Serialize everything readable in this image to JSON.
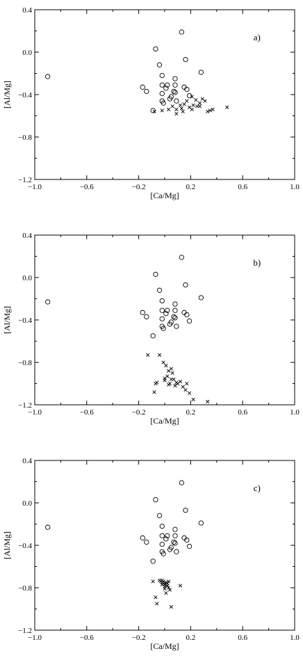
{
  "chart_data": [
    {
      "type": "scatter",
      "panel_label": "a)",
      "xlabel": "[Ca/Mg]",
      "ylabel": "[Al/Mg]",
      "xlim": [
        -1.0,
        1.0
      ],
      "ylim": [
        -1.2,
        0.4
      ],
      "x_ticks": [
        "-1.0",
        "-0.6",
        "-0.2",
        "0.2",
        "0.6",
        "1.0"
      ],
      "y_ticks": [
        "0.4",
        "0.0",
        "-0.4",
        "-0.8",
        "-1.2"
      ],
      "grid": false,
      "series": [
        {
          "marker": "circle",
          "points": [
            [
              -0.9,
              -0.23
            ],
            [
              -0.17,
              -0.33
            ],
            [
              -0.14,
              -0.37
            ],
            [
              -0.09,
              -0.55
            ],
            [
              -0.07,
              0.03
            ],
            [
              -0.04,
              -0.12
            ],
            [
              -0.02,
              -0.22
            ],
            [
              -0.02,
              -0.31
            ],
            [
              -0.02,
              -0.39
            ],
            [
              -0.02,
              -0.46
            ],
            [
              -0.01,
              -0.48
            ],
            [
              0.01,
              -0.34
            ],
            [
              0.02,
              -0.31
            ],
            [
              0.04,
              -0.44
            ],
            [
              0.05,
              -0.42
            ],
            [
              0.07,
              -0.37
            ],
            [
              0.08,
              -0.38
            ],
            [
              0.08,
              -0.25
            ],
            [
              0.08,
              -0.31
            ],
            [
              0.09,
              -0.46
            ],
            [
              0.13,
              0.19
            ],
            [
              0.15,
              -0.33
            ],
            [
              0.16,
              -0.07
            ],
            [
              0.17,
              -0.35
            ],
            [
              0.19,
              -0.41
            ],
            [
              0.28,
              -0.19
            ]
          ]
        },
        {
          "marker": "cross",
          "points": [
            [
              -0.08,
              -0.56
            ],
            [
              -0.02,
              -0.55
            ],
            [
              0.03,
              -0.54
            ],
            [
              0.06,
              -0.51
            ],
            [
              0.09,
              -0.58
            ],
            [
              0.09,
              -0.54
            ],
            [
              0.12,
              -0.5
            ],
            [
              0.14,
              -0.56
            ],
            [
              0.15,
              -0.49
            ],
            [
              0.17,
              -0.46
            ],
            [
              0.19,
              -0.52
            ],
            [
              0.21,
              -0.54
            ],
            [
              0.22,
              -0.5
            ],
            [
              0.24,
              -0.45
            ],
            [
              0.25,
              -0.51
            ],
            [
              0.27,
              -0.48
            ],
            [
              0.29,
              -0.44
            ],
            [
              0.31,
              -0.46
            ],
            [
              0.33,
              -0.56
            ],
            [
              0.35,
              -0.55
            ],
            [
              0.37,
              -0.54
            ],
            [
              0.48,
              -0.52
            ],
            [
              0.21,
              -0.42
            ],
            [
              0.27,
              -0.51
            ],
            [
              0.13,
              -0.53
            ]
          ]
        }
      ]
    },
    {
      "type": "scatter",
      "panel_label": "b)",
      "xlabel": "[Ca/Mg]",
      "ylabel": "[Al/Mg]",
      "xlim": [
        -1.0,
        1.0
      ],
      "ylim": [
        -1.2,
        0.4
      ],
      "x_ticks": [
        "-1.0",
        "-0.6",
        "-0.2",
        "0.2",
        "0.6",
        "1.0"
      ],
      "y_ticks": [
        "0.4",
        "0.0",
        "-0.4",
        "-0.8",
        "-1.2"
      ],
      "grid": false,
      "series": [
        {
          "marker": "circle",
          "points": [
            [
              -0.9,
              -0.23
            ],
            [
              -0.17,
              -0.33
            ],
            [
              -0.14,
              -0.37
            ],
            [
              -0.09,
              -0.55
            ],
            [
              -0.07,
              0.03
            ],
            [
              -0.04,
              -0.12
            ],
            [
              -0.02,
              -0.22
            ],
            [
              -0.02,
              -0.31
            ],
            [
              -0.02,
              -0.39
            ],
            [
              -0.02,
              -0.46
            ],
            [
              -0.01,
              -0.48
            ],
            [
              0.01,
              -0.34
            ],
            [
              0.02,
              -0.31
            ],
            [
              0.04,
              -0.44
            ],
            [
              0.05,
              -0.42
            ],
            [
              0.07,
              -0.37
            ],
            [
              0.08,
              -0.38
            ],
            [
              0.08,
              -0.25
            ],
            [
              0.08,
              -0.31
            ],
            [
              0.09,
              -0.46
            ],
            [
              0.13,
              0.19
            ],
            [
              0.15,
              -0.33
            ],
            [
              0.16,
              -0.07
            ],
            [
              0.17,
              -0.35
            ],
            [
              0.19,
              -0.41
            ],
            [
              0.28,
              -0.19
            ]
          ]
        },
        {
          "marker": "cross",
          "points": [
            [
              -0.13,
              -0.73
            ],
            [
              -0.08,
              -1.08
            ],
            [
              -0.07,
              -1.0
            ],
            [
              -0.06,
              -0.99
            ],
            [
              -0.04,
              -0.73
            ],
            [
              -0.01,
              -0.8
            ],
            [
              0.0,
              -0.97
            ],
            [
              0.01,
              -0.83
            ],
            [
              0.02,
              -0.93
            ],
            [
              0.03,
              -1.01
            ],
            [
              0.03,
              -0.88
            ],
            [
              0.04,
              -1.0
            ],
            [
              0.05,
              -0.86
            ],
            [
              0.06,
              -0.9
            ],
            [
              0.07,
              -0.96
            ],
            [
              0.08,
              -1.02
            ],
            [
              0.09,
              -0.99
            ],
            [
              0.1,
              -1.0
            ],
            [
              0.12,
              -0.98
            ],
            [
              0.14,
              -1.03
            ],
            [
              0.16,
              -1.06
            ],
            [
              0.17,
              -1.0
            ],
            [
              0.19,
              -1.09
            ],
            [
              0.22,
              -1.15
            ],
            [
              0.33,
              -1.17
            ],
            [
              0.0,
              -0.95
            ],
            [
              0.05,
              -0.96
            ]
          ]
        }
      ]
    },
    {
      "type": "scatter",
      "panel_label": "c)",
      "xlabel": "[Ca/Mg]",
      "ylabel": "[Al/Mg]",
      "xlim": [
        -1.0,
        1.0
      ],
      "ylim": [
        -1.2,
        0.4
      ],
      "x_ticks": [
        "-1.0",
        "-0.6",
        "-0.2",
        "0.2",
        "0.6",
        "1.0"
      ],
      "y_ticks": [
        "0.4",
        "0.0",
        "-0.4",
        "-0.8",
        "-1.2"
      ],
      "grid": false,
      "series": [
        {
          "marker": "circle",
          "points": [
            [
              -0.9,
              -0.23
            ],
            [
              -0.17,
              -0.33
            ],
            [
              -0.14,
              -0.37
            ],
            [
              -0.09,
              -0.55
            ],
            [
              -0.07,
              0.03
            ],
            [
              -0.04,
              -0.12
            ],
            [
              -0.02,
              -0.22
            ],
            [
              -0.02,
              -0.31
            ],
            [
              -0.02,
              -0.39
            ],
            [
              -0.02,
              -0.46
            ],
            [
              -0.01,
              -0.48
            ],
            [
              0.01,
              -0.34
            ],
            [
              0.02,
              -0.31
            ],
            [
              0.04,
              -0.44
            ],
            [
              0.05,
              -0.42
            ],
            [
              0.07,
              -0.37
            ],
            [
              0.08,
              -0.38
            ],
            [
              0.08,
              -0.25
            ],
            [
              0.08,
              -0.31
            ],
            [
              0.09,
              -0.46
            ],
            [
              0.13,
              0.19
            ],
            [
              0.15,
              -0.33
            ],
            [
              0.16,
              -0.07
            ],
            [
              0.17,
              -0.35
            ],
            [
              0.19,
              -0.41
            ],
            [
              0.28,
              -0.19
            ]
          ]
        },
        {
          "marker": "cross",
          "points": [
            [
              -0.09,
              -0.74
            ],
            [
              -0.07,
              -0.89
            ],
            [
              -0.06,
              -0.95
            ],
            [
              -0.04,
              -0.73
            ],
            [
              -0.03,
              -0.74
            ],
            [
              -0.02,
              -0.75
            ],
            [
              -0.02,
              -0.73
            ],
            [
              -0.01,
              -0.76
            ],
            [
              -0.01,
              -0.74
            ],
            [
              0.0,
              -0.77
            ],
            [
              0.0,
              -0.79
            ],
            [
              0.01,
              -0.75
            ],
            [
              0.01,
              -0.85
            ],
            [
              0.02,
              -0.78
            ],
            [
              0.02,
              -0.76
            ],
            [
              0.03,
              -0.8
            ],
            [
              0.03,
              -0.74
            ],
            [
              0.04,
              -0.82
            ],
            [
              0.05,
              -0.98
            ],
            [
              0.12,
              -0.78
            ],
            [
              -0.02,
              -0.77
            ],
            [
              0.0,
              -0.81
            ]
          ]
        }
      ]
    }
  ]
}
